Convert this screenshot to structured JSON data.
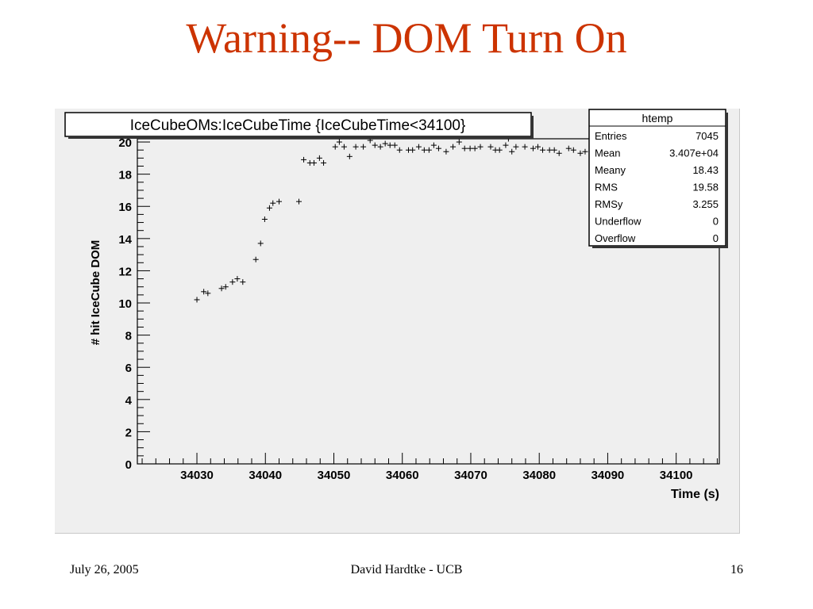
{
  "slide": {
    "title": "Warning-- DOM Turn On",
    "title_color": "#cc3300"
  },
  "footer": {
    "date": "July 26, 2005",
    "author": "David Hardtke - UCB",
    "page": "16"
  },
  "stats_box": {
    "title": "htemp",
    "rows": [
      {
        "label": "Entries",
        "value": "7045"
      },
      {
        "label": "Mean",
        "value": "3.407e+04"
      },
      {
        "label": "Meany",
        "value": "18.43"
      },
      {
        "label": "RMS",
        "value": "19.58"
      },
      {
        "label": "RMSy",
        "value": "3.255"
      },
      {
        "label": "Underflow",
        "value": "0"
      },
      {
        "label": "Overflow",
        "value": "0"
      }
    ]
  },
  "chart_data": {
    "type": "scatter",
    "title": "IceCubeOMs:IceCubeTime {IceCubeTime<34100}",
    "xlabel": "Time (s)",
    "ylabel": "# hit IceCube DOM",
    "xlim": [
      34021.3,
      34106.3
    ],
    "ylim": [
      0,
      20.2
    ],
    "xticks": [
      34030,
      34040,
      34050,
      34060,
      34070,
      34080,
      34090,
      34100
    ],
    "yticks": [
      0,
      2,
      4,
      6,
      8,
      10,
      12,
      14,
      16,
      18,
      20
    ],
    "marker_color": "#000000",
    "points": [
      {
        "x": 34030.0,
        "y": 10.2
      },
      {
        "x": 34031.0,
        "y": 10.7
      },
      {
        "x": 34031.6,
        "y": 10.6
      },
      {
        "x": 34033.6,
        "y": 10.9
      },
      {
        "x": 34034.2,
        "y": 11.0
      },
      {
        "x": 34035.2,
        "y": 11.3
      },
      {
        "x": 34035.9,
        "y": 11.5
      },
      {
        "x": 34036.7,
        "y": 11.3
      },
      {
        "x": 34038.6,
        "y": 12.7
      },
      {
        "x": 34039.3,
        "y": 13.7
      },
      {
        "x": 34039.9,
        "y": 15.2
      },
      {
        "x": 34040.6,
        "y": 15.9
      },
      {
        "x": 34041.1,
        "y": 16.2
      },
      {
        "x": 34042.0,
        "y": 16.3
      },
      {
        "x": 34044.9,
        "y": 16.3
      },
      {
        "x": 34045.6,
        "y": 18.9
      },
      {
        "x": 34046.5,
        "y": 18.7
      },
      {
        "x": 34047.1,
        "y": 18.7
      },
      {
        "x": 34047.9,
        "y": 19.0
      },
      {
        "x": 34048.5,
        "y": 18.7
      },
      {
        "x": 34050.2,
        "y": 19.7
      },
      {
        "x": 34050.8,
        "y": 20.0
      },
      {
        "x": 34051.5,
        "y": 19.7
      },
      {
        "x": 34052.3,
        "y": 19.1
      },
      {
        "x": 34053.2,
        "y": 19.7
      },
      {
        "x": 34054.3,
        "y": 19.7
      },
      {
        "x": 34055.3,
        "y": 20.1
      },
      {
        "x": 34056.0,
        "y": 19.8
      },
      {
        "x": 34056.8,
        "y": 19.7
      },
      {
        "x": 34057.5,
        "y": 19.9
      },
      {
        "x": 34058.2,
        "y": 19.8
      },
      {
        "x": 34058.9,
        "y": 19.8
      },
      {
        "x": 34059.6,
        "y": 19.5
      },
      {
        "x": 34060.9,
        "y": 19.5
      },
      {
        "x": 34061.5,
        "y": 19.5
      },
      {
        "x": 34062.4,
        "y": 19.7
      },
      {
        "x": 34063.2,
        "y": 19.5
      },
      {
        "x": 34063.9,
        "y": 19.5
      },
      {
        "x": 34064.6,
        "y": 19.8
      },
      {
        "x": 34065.3,
        "y": 19.6
      },
      {
        "x": 34066.4,
        "y": 19.4
      },
      {
        "x": 34067.4,
        "y": 19.7
      },
      {
        "x": 34068.3,
        "y": 20.0
      },
      {
        "x": 34069.1,
        "y": 19.6
      },
      {
        "x": 34069.9,
        "y": 19.6
      },
      {
        "x": 34070.6,
        "y": 19.6
      },
      {
        "x": 34071.4,
        "y": 19.7
      },
      {
        "x": 34072.9,
        "y": 19.7
      },
      {
        "x": 34073.6,
        "y": 19.5
      },
      {
        "x": 34074.2,
        "y": 19.5
      },
      {
        "x": 34075.1,
        "y": 19.8
      },
      {
        "x": 34075.5,
        "y": 20.2
      },
      {
        "x": 34076.0,
        "y": 19.4
      },
      {
        "x": 34076.6,
        "y": 19.7
      },
      {
        "x": 34077.9,
        "y": 19.7
      },
      {
        "x": 34079.1,
        "y": 19.6
      },
      {
        "x": 34079.8,
        "y": 19.7
      },
      {
        "x": 34080.5,
        "y": 19.5
      },
      {
        "x": 34081.5,
        "y": 19.5
      },
      {
        "x": 34082.2,
        "y": 19.5
      },
      {
        "x": 34082.9,
        "y": 19.3
      },
      {
        "x": 34084.3,
        "y": 19.6
      },
      {
        "x": 34085.0,
        "y": 19.5
      },
      {
        "x": 34086.0,
        "y": 19.3
      },
      {
        "x": 34086.7,
        "y": 19.4
      }
    ]
  }
}
